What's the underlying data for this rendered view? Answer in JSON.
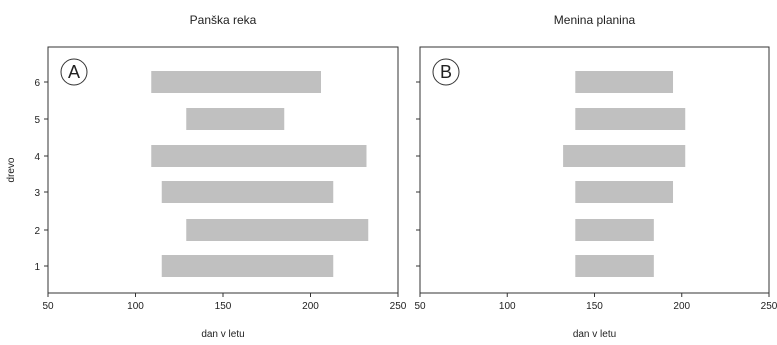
{
  "chart_data": [
    {
      "type": "bar",
      "orientation": "horizontal-range",
      "title": "Panška reka",
      "panel_label": "A",
      "xlabel": "dan v letu",
      "ylabel": "drevo",
      "xlim": [
        50,
        250
      ],
      "x_ticks": [
        50,
        100,
        150,
        200,
        250
      ],
      "categories": [
        1,
        2,
        3,
        4,
        5,
        6
      ],
      "series": [
        {
          "color": "#c0c0c0",
          "ranges": [
            {
              "drevo": 1,
              "start": 115,
              "end": 213
            },
            {
              "drevo": 2,
              "start": 129,
              "end": 233
            },
            {
              "drevo": 3,
              "start": 115,
              "end": 213
            },
            {
              "drevo": 4,
              "start": 109,
              "end": 232
            },
            {
              "drevo": 5,
              "start": 129,
              "end": 185
            },
            {
              "drevo": 6,
              "start": 109,
              "end": 206
            }
          ]
        }
      ],
      "grid": false
    },
    {
      "type": "bar",
      "orientation": "horizontal-range",
      "title": "Menina planina",
      "panel_label": "B",
      "xlabel": "dan v letu",
      "ylabel": "",
      "xlim": [
        50,
        250
      ],
      "x_ticks": [
        50,
        100,
        150,
        200,
        250
      ],
      "categories": [
        1,
        2,
        3,
        4,
        5,
        6
      ],
      "series": [
        {
          "color": "#c0c0c0",
          "ranges": [
            {
              "drevo": 1,
              "start": 139,
              "end": 184
            },
            {
              "drevo": 2,
              "start": 139,
              "end": 184
            },
            {
              "drevo": 3,
              "start": 139,
              "end": 195
            },
            {
              "drevo": 4,
              "start": 132,
              "end": 202
            },
            {
              "drevo": 5,
              "start": 139,
              "end": 202
            },
            {
              "drevo": 6,
              "start": 139,
              "end": 195
            }
          ]
        }
      ],
      "grid": false
    }
  ]
}
